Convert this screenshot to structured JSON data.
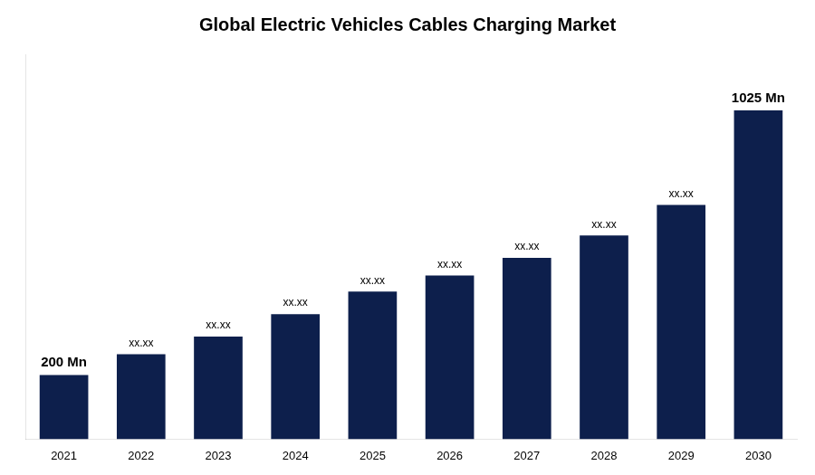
{
  "chart_data": {
    "type": "bar",
    "title": "Global Electric Vehicles Cables Charging Market",
    "categories": [
      "2021",
      "2022",
      "2023",
      "2024",
      "2025",
      "2026",
      "2027",
      "2028",
      "2029",
      "2030"
    ],
    "values": [
      200,
      265,
      320,
      390,
      460,
      510,
      565,
      635,
      730,
      1025
    ],
    "value_labels": [
      "200 Mn",
      "xx.xx",
      "xx.xx",
      "xx.xx",
      "xx.xx",
      "xx.xx",
      "xx.xx",
      "xx.xx",
      "xx.xx",
      "1025 Mn"
    ],
    "data_labels": true,
    "color": "#0d1f4c",
    "ylim": [
      0,
      1200
    ],
    "grid": false,
    "tick_labels": "x"
  }
}
